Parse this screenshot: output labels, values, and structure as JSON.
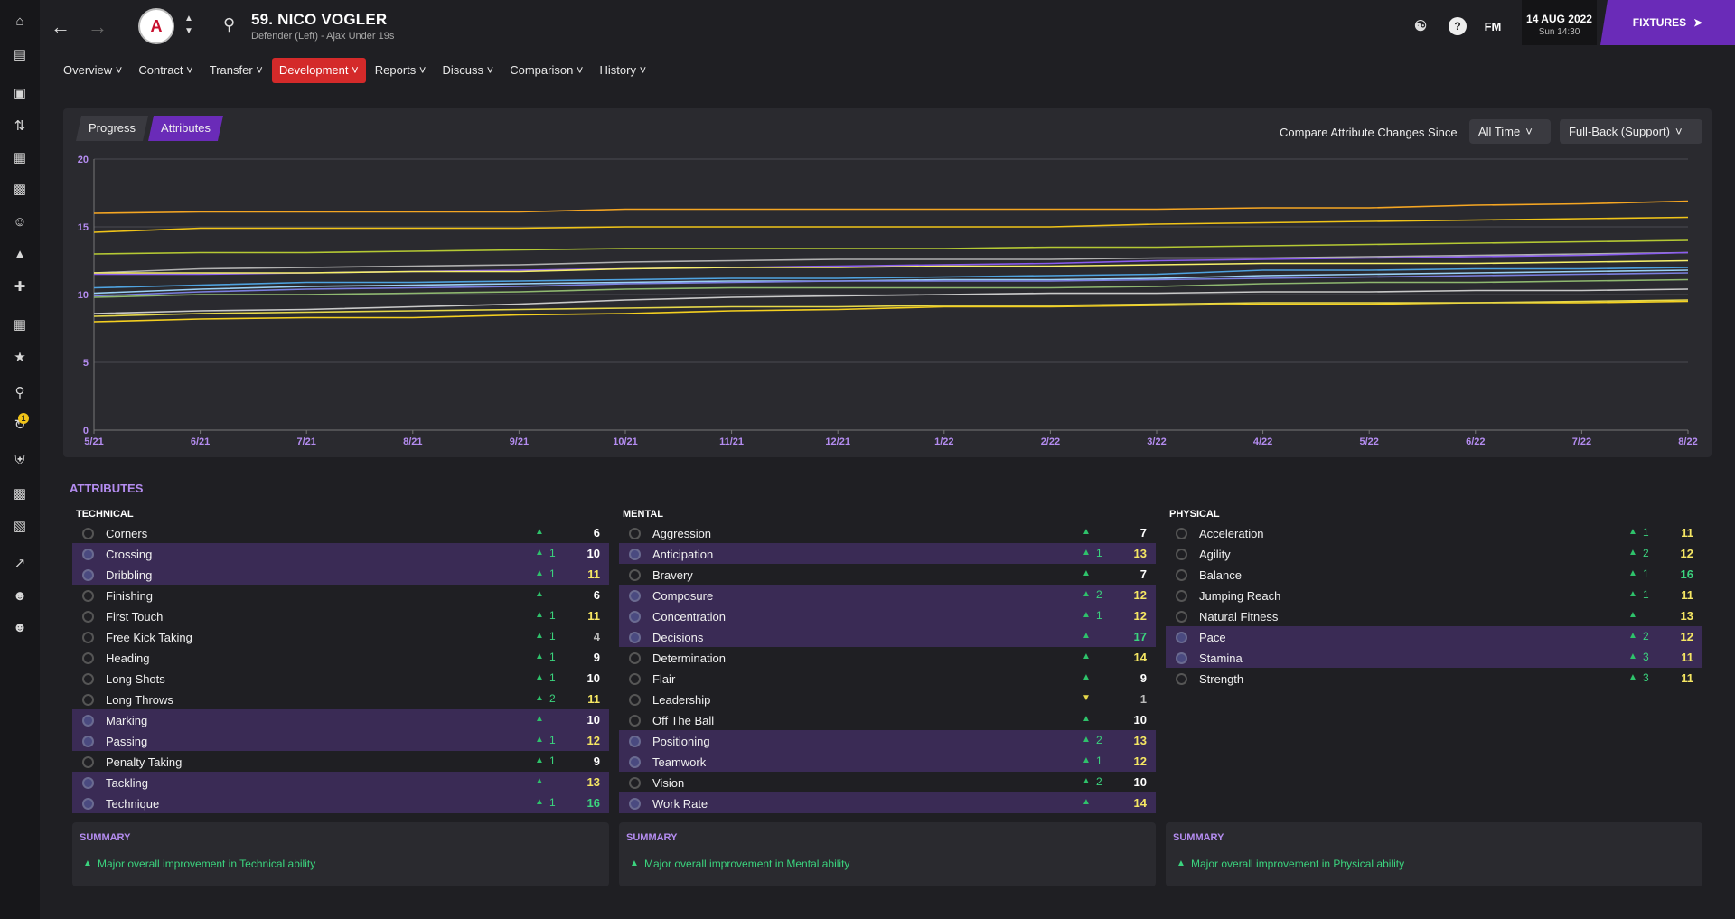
{
  "sidebar": {
    "icons": [
      "home-icon",
      "inbox-icon",
      "squad-icon",
      "tactics-icon",
      "data-icon",
      "training-icon",
      "staff-icon",
      "dynamics-icon",
      "medical-icon",
      "schedule-icon",
      "competitions-icon",
      "scouting-icon",
      "transfers-icon",
      "club-vision-icon",
      "finances-icon",
      "dev-centre-icon",
      "report-icon",
      "staff-list-icon",
      "manager-icon"
    ],
    "badge": "1"
  },
  "header": {
    "player_name": "59. NICO VOGLER",
    "player_sub": "Defender (Left) - Ajax Under 19s",
    "fm_label": "FM",
    "date": "14 AUG 2022",
    "time": "Sun 14:30",
    "fixtures_label": "FIXTURES"
  },
  "tabs": [
    {
      "label": "Overview"
    },
    {
      "label": "Contract"
    },
    {
      "label": "Transfer"
    },
    {
      "label": "Development"
    },
    {
      "label": "Reports"
    },
    {
      "label": "Discuss"
    },
    {
      "label": "Comparison"
    },
    {
      "label": "History"
    }
  ],
  "subtabs": {
    "progress": "Progress",
    "attributes": "Attributes"
  },
  "compare": {
    "label": "Compare Attribute Changes Since",
    "since": "All Time",
    "role": "Full-Back (Support)"
  },
  "chart_data": {
    "type": "line",
    "x": [
      "5/21",
      "6/21",
      "7/21",
      "8/21",
      "9/21",
      "10/21",
      "11/21",
      "12/21",
      "1/22",
      "2/22",
      "3/22",
      "4/22",
      "5/22",
      "6/22",
      "7/22",
      "8/22"
    ],
    "ylim": [
      0,
      20
    ],
    "yticks": [
      "0",
      "5",
      "10",
      "15",
      "20"
    ],
    "series": [
      {
        "color": "#f5a623",
        "values": [
          16,
          16.1,
          16.1,
          16.1,
          16.1,
          16.3,
          16.3,
          16.3,
          16.3,
          16.3,
          16.3,
          16.4,
          16.4,
          16.6,
          16.7,
          16.9
        ]
      },
      {
        "color": "#f0c419",
        "values": [
          14.6,
          14.9,
          14.9,
          14.9,
          14.9,
          15.0,
          15.0,
          15.0,
          15.0,
          15.0,
          15.2,
          15.3,
          15.4,
          15.5,
          15.6,
          15.7
        ]
      },
      {
        "color": "#b5c934",
        "values": [
          13,
          13.1,
          13.1,
          13.2,
          13.3,
          13.4,
          13.4,
          13.4,
          13.4,
          13.5,
          13.5,
          13.6,
          13.7,
          13.8,
          13.9,
          14.0
        ]
      },
      {
        "color": "#b0b0b0",
        "values": [
          11.6,
          11.9,
          12.0,
          12.1,
          12.2,
          12.4,
          12.5,
          12.6,
          12.6,
          12.6,
          12.7,
          12.7,
          12.8,
          12.9,
          13.0,
          13.1
        ]
      },
      {
        "color": "#8a5cf0",
        "values": [
          11.5,
          11.5,
          11.6,
          11.7,
          11.8,
          11.9,
          12.0,
          12.1,
          12.2,
          12.3,
          12.5,
          12.6,
          12.7,
          12.8,
          12.9,
          13.1
        ]
      },
      {
        "color": "#f7f06a",
        "values": [
          11.6,
          11.6,
          11.6,
          11.7,
          11.7,
          11.9,
          12.0,
          12.0,
          12.1,
          12.1,
          12.2,
          12.3,
          12.3,
          12.3,
          12.4,
          12.5
        ]
      },
      {
        "color": "#4fa3e0",
        "values": [
          10.5,
          10.7,
          10.9,
          10.9,
          11.0,
          11.1,
          11.2,
          11.2,
          11.3,
          11.4,
          11.5,
          11.8,
          11.8,
          11.9,
          11.9,
          12.0
        ]
      },
      {
        "color": "#9ad0f5",
        "values": [
          10.1,
          10.4,
          10.6,
          10.7,
          10.8,
          10.9,
          11.0,
          11.0,
          11.1,
          11.1,
          11.2,
          11.4,
          11.5,
          11.6,
          11.7,
          11.8
        ]
      },
      {
        "color": "#7b7fe0",
        "values": [
          9.9,
          10.2,
          10.4,
          10.5,
          10.6,
          10.8,
          10.9,
          11.0,
          11.0,
          11.0,
          11.1,
          11.2,
          11.3,
          11.4,
          11.5,
          11.6
        ]
      },
      {
        "color": "#8fb870",
        "values": [
          9.8,
          10.0,
          10.0,
          10.1,
          10.2,
          10.4,
          10.5,
          10.5,
          10.5,
          10.5,
          10.6,
          10.8,
          10.9,
          10.9,
          11.0,
          11.1
        ]
      },
      {
        "color": "#c9c9c9",
        "values": [
          8.6,
          8.8,
          8.9,
          9.1,
          9.3,
          9.6,
          9.8,
          9.9,
          10.0,
          10.1,
          10.1,
          10.2,
          10.2,
          10.3,
          10.3,
          10.4
        ]
      },
      {
        "color": "#f5d020",
        "values": [
          8.0,
          8.2,
          8.3,
          8.3,
          8.5,
          8.6,
          8.8,
          8.9,
          9.1,
          9.1,
          9.2,
          9.3,
          9.3,
          9.4,
          9.4,
          9.5
        ]
      },
      {
        "color": "#e6d84a",
        "values": [
          8.4,
          8.6,
          8.7,
          8.8,
          8.9,
          9.0,
          9.1,
          9.1,
          9.2,
          9.2,
          9.3,
          9.4,
          9.4,
          9.4,
          9.5,
          9.6
        ]
      }
    ]
  },
  "attributes": {
    "title": "ATTRIBUTES",
    "technical": {
      "heading": "TECHNICAL",
      "rows": [
        {
          "name": "Corners",
          "change": "",
          "value": "6",
          "color": "#ffffff",
          "hl": false
        },
        {
          "name": "Crossing",
          "change": "1",
          "value": "10",
          "color": "#ffffff",
          "hl": true
        },
        {
          "name": "Dribbling",
          "change": "1",
          "value": "11",
          "color": "#f5e663",
          "hl": true
        },
        {
          "name": "Finishing",
          "change": "",
          "value": "6",
          "color": "#ffffff",
          "hl": false
        },
        {
          "name": "First Touch",
          "change": "1",
          "value": "11",
          "color": "#f5e663",
          "hl": false
        },
        {
          "name": "Free Kick Taking",
          "change": "1",
          "value": "4",
          "color": "#bbbbbb",
          "hl": false
        },
        {
          "name": "Heading",
          "change": "1",
          "value": "9",
          "color": "#ffffff",
          "hl": false
        },
        {
          "name": "Long Shots",
          "change": "1",
          "value": "10",
          "color": "#ffffff",
          "hl": false
        },
        {
          "name": "Long Throws",
          "change": "2",
          "value": "11",
          "color": "#f5e663",
          "hl": false
        },
        {
          "name": "Marking",
          "change": "",
          "value": "10",
          "color": "#ffffff",
          "hl": true
        },
        {
          "name": "Passing",
          "change": "1",
          "value": "12",
          "color": "#f5e663",
          "hl": true
        },
        {
          "name": "Penalty Taking",
          "change": "1",
          "value": "9",
          "color": "#ffffff",
          "hl": false
        },
        {
          "name": "Tackling",
          "change": "",
          "value": "13",
          "color": "#f5e663",
          "hl": true
        },
        {
          "name": "Technique",
          "change": "1",
          "value": "16",
          "color": "#3bd47e",
          "hl": true
        }
      ]
    },
    "mental": {
      "heading": "MENTAL",
      "rows": [
        {
          "name": "Aggression",
          "change": "",
          "value": "7",
          "color": "#ffffff",
          "hl": false
        },
        {
          "name": "Anticipation",
          "change": "1",
          "value": "13",
          "color": "#f5e663",
          "hl": true
        },
        {
          "name": "Bravery",
          "change": "",
          "value": "7",
          "color": "#ffffff",
          "hl": false
        },
        {
          "name": "Composure",
          "change": "2",
          "value": "12",
          "color": "#f5e663",
          "hl": true
        },
        {
          "name": "Concentration",
          "change": "1",
          "value": "12",
          "color": "#f5e663",
          "hl": true
        },
        {
          "name": "Decisions",
          "change": "",
          "value": "17",
          "color": "#3bd47e",
          "hl": true
        },
        {
          "name": "Determination",
          "change": "",
          "value": "14",
          "color": "#f5e663",
          "hl": false
        },
        {
          "name": "Flair",
          "change": "",
          "value": "9",
          "color": "#ffffff",
          "hl": false
        },
        {
          "name": "Leadership",
          "change": "",
          "value": "1",
          "color": "#bbbbbb",
          "hl": false
        },
        {
          "name": "Off The Ball",
          "change": "",
          "value": "10",
          "color": "#ffffff",
          "hl": false
        },
        {
          "name": "Positioning",
          "change": "2",
          "value": "13",
          "color": "#f5e663",
          "hl": true
        },
        {
          "name": "Teamwork",
          "change": "1",
          "value": "12",
          "color": "#f5e663",
          "hl": true
        },
        {
          "name": "Vision",
          "change": "2",
          "value": "10",
          "color": "#ffffff",
          "hl": false
        },
        {
          "name": "Work Rate",
          "change": "",
          "value": "14",
          "color": "#f5e663",
          "hl": true
        }
      ]
    },
    "physical": {
      "heading": "PHYSICAL",
      "rows": [
        {
          "name": "Acceleration",
          "change": "1",
          "value": "11",
          "color": "#f5e663",
          "hl": false
        },
        {
          "name": "Agility",
          "change": "2",
          "value": "12",
          "color": "#f5e663",
          "hl": false
        },
        {
          "name": "Balance",
          "change": "1",
          "value": "16",
          "color": "#3bd47e",
          "hl": false
        },
        {
          "name": "Jumping Reach",
          "change": "1",
          "value": "11",
          "color": "#f5e663",
          "hl": false
        },
        {
          "name": "Natural Fitness",
          "change": "",
          "value": "13",
          "color": "#f5e663",
          "hl": false
        },
        {
          "name": "Pace",
          "change": "2",
          "value": "12",
          "color": "#f5e663",
          "hl": true
        },
        {
          "name": "Stamina",
          "change": "3",
          "value": "11",
          "color": "#f5e663",
          "hl": true
        },
        {
          "name": "Strength",
          "change": "3",
          "value": "11",
          "color": "#f5e663",
          "hl": false
        }
      ]
    }
  },
  "summary": {
    "title": "SUMMARY",
    "technical": "Major overall improvement in Technical ability",
    "mental": "Major overall improvement in Mental ability",
    "physical": "Major overall improvement in Physical ability"
  }
}
